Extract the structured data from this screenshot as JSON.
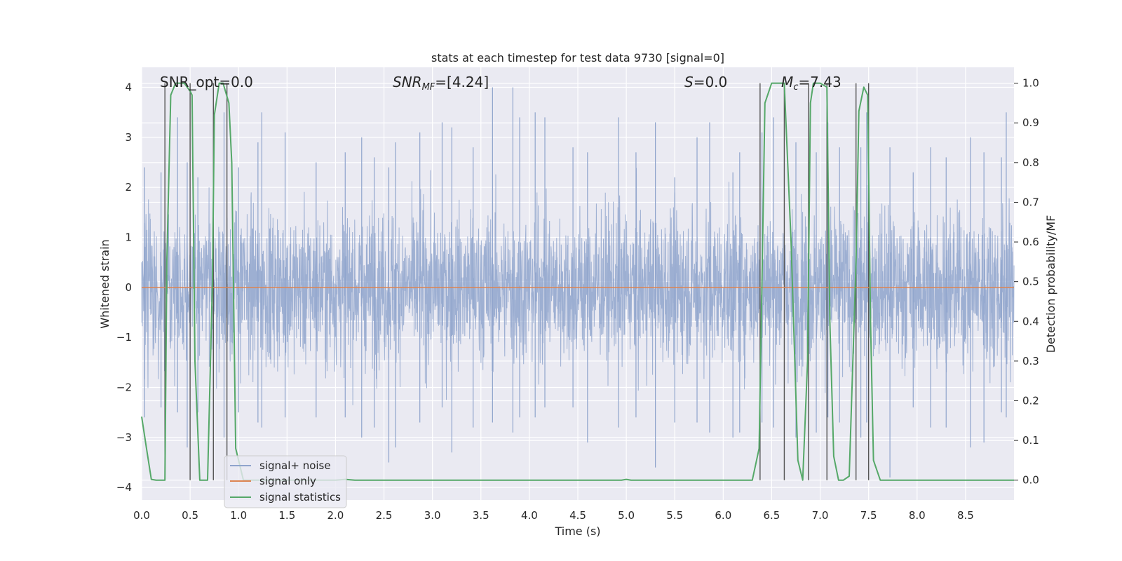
{
  "chart_data": {
    "type": "line",
    "title": "stats at each timestep for test data 9730 [signal=0]",
    "xlabel": "Time (s)",
    "ylabel": "Whitened strain",
    "y2label": "Detection probability/MF",
    "xlim": [
      0.0,
      9.0
    ],
    "ylim": [
      -4.25,
      4.4
    ],
    "y2lim": [
      -0.05,
      1.04
    ],
    "xticks": [
      "0.0",
      "0.5",
      "1.0",
      "1.5",
      "2.0",
      "2.5",
      "3.0",
      "3.5",
      "4.0",
      "4.5",
      "5.0",
      "5.5",
      "6.0",
      "6.5",
      "7.0",
      "7.5",
      "8.0",
      "8.5"
    ],
    "yticks": [
      "-4",
      "-3",
      "-2",
      "-1",
      "0",
      "1",
      "2",
      "3",
      "4"
    ],
    "y2ticks": [
      "0.0",
      "0.1",
      "0.2",
      "0.3",
      "0.4",
      "0.5",
      "0.6",
      "0.7",
      "0.8",
      "0.9",
      "1.0"
    ],
    "grid": true,
    "legend_position": "lower-left",
    "annotations": {
      "snr_opt": "SNR_opt=0.0",
      "snr_mf_main": "SNR",
      "snr_mf_sub": "MF",
      "snr_mf_value": "=[4.24]",
      "s_main": "S",
      "s_value": "=0.0",
      "mc_main": "M",
      "mc_sub": "c",
      "mc_value": "=7.43"
    },
    "series": [
      {
        "name": "signal+ noise",
        "color": "#8fa4cc",
        "axis": "left",
        "description_values": "whitened noise, approx. gaussian, peaks between -3.7 and 4.0",
        "peaks": [
          [
            0.03,
            2.4,
            -2.6
          ],
          [
            0.2,
            2.3,
            -2.4
          ],
          [
            0.37,
            3.4,
            -2.5
          ],
          [
            0.47,
            2.5,
            -3.2
          ],
          [
            0.58,
            2.2,
            -2.5
          ],
          [
            0.85,
            3.5,
            -3.0
          ],
          [
            1.0,
            2.4,
            -2.5
          ],
          [
            1.2,
            2.9,
            -2.7
          ],
          [
            1.24,
            3.5,
            -2.8
          ],
          [
            1.48,
            3.1,
            -2.6
          ],
          [
            1.8,
            2.5,
            -2.6
          ],
          [
            2.1,
            2.7,
            -2.6
          ],
          [
            2.27,
            3.0,
            -3.0
          ],
          [
            2.4,
            2.6,
            -2.8
          ],
          [
            2.55,
            2.4,
            -3.5
          ],
          [
            2.62,
            2.9,
            -3.2
          ],
          [
            2.87,
            3.1,
            -2.7
          ],
          [
            3.1,
            3.3,
            -2.4
          ],
          [
            3.2,
            3.2,
            -3.3
          ],
          [
            3.42,
            2.8,
            -2.8
          ],
          [
            3.62,
            4.0,
            -2.7
          ],
          [
            3.83,
            4.0,
            -2.9
          ],
          [
            3.9,
            3.4,
            -2.6
          ],
          [
            4.06,
            3.5,
            -2.6
          ],
          [
            4.16,
            3.4,
            -2.4
          ],
          [
            4.45,
            2.8,
            -2.4
          ],
          [
            4.6,
            2.7,
            -3.1
          ],
          [
            4.92,
            3.4,
            -2.8
          ],
          [
            5.1,
            2.7,
            -2.6
          ],
          [
            5.3,
            3.3,
            -3.6
          ],
          [
            5.5,
            2.2,
            -2.7
          ],
          [
            5.73,
            3.0,
            -2.7
          ],
          [
            5.86,
            3.3,
            -2.9
          ],
          [
            6.1,
            2.3,
            -3.0
          ],
          [
            6.17,
            2.7,
            -2.9
          ],
          [
            6.4,
            3.1,
            -2.7
          ],
          [
            6.52,
            3.4,
            -2.8
          ],
          [
            6.75,
            2.9,
            -3.0
          ],
          [
            6.96,
            2.7,
            -2.9
          ],
          [
            7.08,
            3.3,
            -2.6
          ],
          [
            7.2,
            2.8,
            -2.7
          ],
          [
            7.42,
            2.8,
            -3.0
          ],
          [
            7.48,
            3.5,
            -2.7
          ],
          [
            7.72,
            2.8,
            -3.8
          ],
          [
            7.96,
            2.3,
            -2.4
          ],
          [
            8.14,
            2.8,
            -2.8
          ],
          [
            8.3,
            2.6,
            -2.8
          ],
          [
            8.55,
            3.0,
            -3.2
          ],
          [
            8.69,
            2.7,
            -3.1
          ],
          [
            8.87,
            2.6,
            -2.5
          ],
          [
            8.92,
            3.5,
            -2.6
          ]
        ]
      },
      {
        "name": "signal only",
        "color": "#dd8452",
        "axis": "left",
        "x": [
          0.0,
          9.0
        ],
        "y": [
          0.0,
          0.0
        ]
      },
      {
        "name": "signal statistics",
        "color": "#55a868",
        "axis": "right",
        "x": [
          0.0,
          0.05,
          0.1,
          0.15,
          0.24,
          0.26,
          0.3,
          0.35,
          0.4,
          0.44,
          0.5,
          0.52,
          0.55,
          0.6,
          0.68,
          0.73,
          0.75,
          0.8,
          0.84,
          0.9,
          0.93,
          0.97,
          1.05,
          1.5,
          2.0,
          2.1,
          2.2,
          2.5,
          3.0,
          3.5,
          4.0,
          4.5,
          4.95,
          5.0,
          5.05,
          5.5,
          6.0,
          6.3,
          6.37,
          6.4,
          6.43,
          6.5,
          6.6,
          6.63,
          6.7,
          6.77,
          6.82,
          6.87,
          6.9,
          6.93,
          7.0,
          7.07,
          7.1,
          7.14,
          7.19,
          7.24,
          7.3,
          7.37,
          7.4,
          7.45,
          7.49,
          7.52,
          7.55,
          7.62,
          7.7,
          8.0,
          8.5,
          9.0
        ],
        "y": [
          0.16,
          0.08,
          0.002,
          0.0,
          0.0,
          0.55,
          0.97,
          1.0,
          1.0,
          1.0,
          0.98,
          0.97,
          0.3,
          0.0,
          0.0,
          0.5,
          0.92,
          1.0,
          1.0,
          0.95,
          0.8,
          0.08,
          0.0,
          0.0,
          0.0,
          0.002,
          0.0,
          0.0,
          0.0,
          0.0,
          0.0,
          0.0,
          0.0,
          0.002,
          0.0,
          0.0,
          0.0,
          0.0,
          0.08,
          0.5,
          0.95,
          1.0,
          1.0,
          1.0,
          0.6,
          0.05,
          0.0,
          0.3,
          0.95,
          1.0,
          1.0,
          0.99,
          0.4,
          0.06,
          0.0,
          0.0,
          0.01,
          0.55,
          0.93,
          0.99,
          0.97,
          0.4,
          0.05,
          0.0,
          0.0,
          0.0,
          0.0,
          0.0
        ]
      }
    ],
    "vlines_x": [
      0.24,
      0.5,
      0.74,
      0.88,
      6.38,
      6.63,
      6.88,
      7.07,
      7.37,
      7.5
    ]
  }
}
